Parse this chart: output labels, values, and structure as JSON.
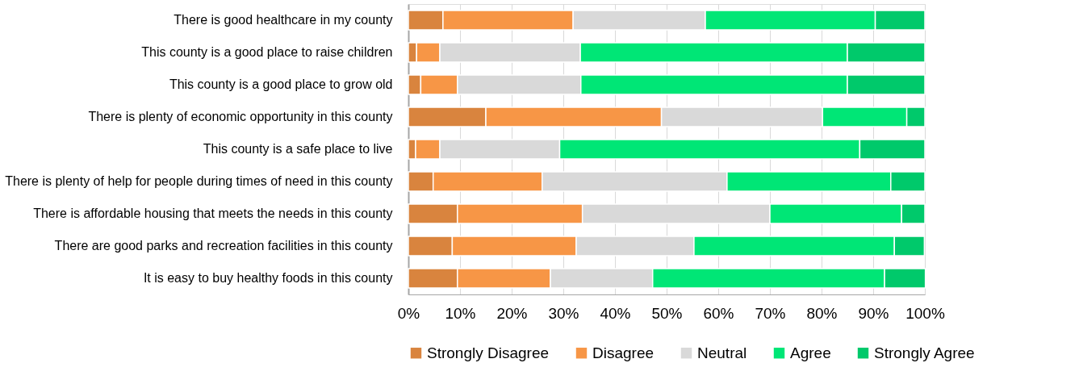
{
  "chart_data": {
    "type": "bar",
    "orientation": "horizontal",
    "stacked": true,
    "categories": [
      "There is good healthcare in my county",
      "This county is a good place to raise children",
      "This county is a good place to grow old",
      "There is plenty of economic opportunity in this county",
      "This county is a safe place to live",
      "There is plenty of help for people during times of need in this county",
      "There is affordable housing that meets the needs in this county",
      "There are good parks and recreation facilities in this county",
      "It is easy to buy healthy foods in this county"
    ],
    "series": [
      {
        "name": "Strongly Disagree",
        "color": "#d9843e",
        "values": [
          6.7,
          1.6,
          2.4,
          15.0,
          1.4,
          4.8,
          9.5,
          8.5,
          9.5
        ]
      },
      {
        "name": "Disagree",
        "color": "#f79646",
        "values": [
          25.2,
          4.5,
          7.1,
          34.0,
          4.7,
          21.1,
          24.2,
          24.0,
          18.0
        ]
      },
      {
        "name": "Neutral",
        "color": "#d9d9d9",
        "values": [
          25.6,
          27.2,
          23.9,
          31.2,
          23.2,
          35.8,
          36.3,
          22.8,
          19.8
        ]
      },
      {
        "name": "Agree",
        "color": "#00e676",
        "values": [
          32.9,
          51.7,
          51.6,
          16.3,
          58.1,
          31.7,
          25.5,
          38.8,
          44.9
        ]
      },
      {
        "name": "Strongly Agree",
        "color": "#00c96b",
        "values": [
          9.6,
          15.0,
          15.0,
          3.5,
          12.6,
          6.6,
          4.5,
          5.8,
          7.9
        ]
      }
    ],
    "xlim": [
      0,
      100
    ],
    "xticks": [
      {
        "value": 0,
        "label": "0%"
      },
      {
        "value": 10,
        "label": "10%"
      },
      {
        "value": 20,
        "label": "20%"
      },
      {
        "value": 30,
        "label": "30%"
      },
      {
        "value": 40,
        "label": "40%"
      },
      {
        "value": 50,
        "label": "50%"
      },
      {
        "value": 60,
        "label": "60%"
      },
      {
        "value": 70,
        "label": "70%"
      },
      {
        "value": 80,
        "label": "80%"
      },
      {
        "value": 90,
        "label": "90%"
      },
      {
        "value": 100,
        "label": "100%"
      }
    ],
    "grid": "x",
    "legend": "bottom"
  }
}
